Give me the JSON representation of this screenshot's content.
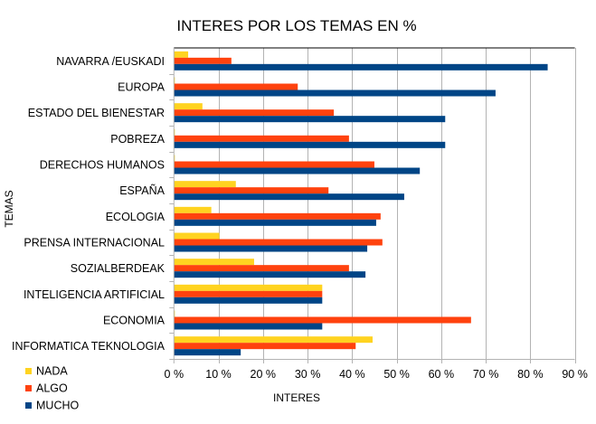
{
  "chart_data": {
    "type": "bar",
    "orientation": "horizontal",
    "title": "INTERES POR LOS TEMAS EN %",
    "xlabel": "INTERES",
    "ylabel": "TEMAS",
    "xlim": [
      0,
      90
    ],
    "x_ticks": [
      0,
      10,
      20,
      30,
      40,
      50,
      60,
      70,
      80,
      90
    ],
    "x_tick_labels": [
      "0 %",
      "10 %",
      "20 %",
      "30 %",
      "40 %",
      "50 %",
      "60 %",
      "70 %",
      "80 %",
      "90 %"
    ],
    "grid": "vertical",
    "legend_position": "bottom-left",
    "categories": [
      "NAVARRA /EUSKADI",
      "EUROPA",
      "ESTADO DEL BIENESTAR",
      "POBREZA",
      "DERECHOS HUMANOS",
      "ESPAÑA",
      "ECOLOGIA",
      "PRENSA INTERNACIONAL",
      "SOZIALBERDEAK",
      "INTELIGENCIA ARTIFICIAL",
      "ECONOMIA",
      "INFORMATICA TEKNOLOGIA"
    ],
    "series": [
      {
        "name": "NADA",
        "color": "#ffd320",
        "values": [
          3.2,
          0,
          6.4,
          0,
          0,
          13.9,
          8.4,
          10.2,
          18.0,
          33.3,
          0,
          44.6
        ]
      },
      {
        "name": "ALGO",
        "color": "#ff420e",
        "values": [
          12.9,
          27.8,
          35.9,
          39.3,
          45.0,
          34.7,
          46.4,
          46.8,
          39.3,
          33.3,
          66.7,
          40.8
        ]
      },
      {
        "name": "MUCHO",
        "color": "#004586",
        "values": [
          83.9,
          72.2,
          60.9,
          60.9,
          55.2,
          51.7,
          45.4,
          43.4,
          43.0,
          33.3,
          33.3,
          15.0
        ]
      }
    ]
  }
}
